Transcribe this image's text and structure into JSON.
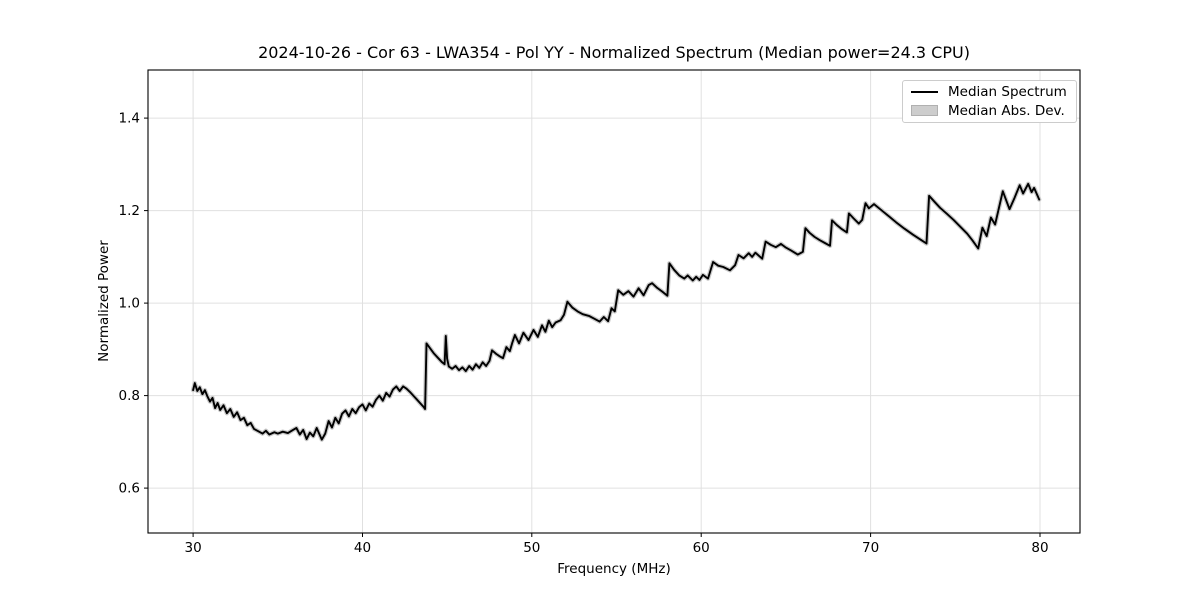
{
  "figure": {
    "title": "2024-10-26 - Cor 63 - LWA354 - Pol YY - Normalized Spectrum (Median power=24.3 CPU)",
    "xlabel": "Frequency (MHz)",
    "ylabel": "Normalized Power"
  },
  "legend": {
    "items": [
      {
        "label": "Median Spectrum",
        "swatch": "line",
        "color": "#000000"
      },
      {
        "label": "Median Abs. Dev.",
        "swatch": "patch",
        "color": "#cdcdcd",
        "edge_color": "#b0b0b0"
      }
    ]
  },
  "chart_data": {
    "type": "line",
    "title": "2024-10-26 - Cor 63 - LWA354 - Pol YY - Normalized Spectrum (Median power=24.3 CPU)",
    "xlabel": "Frequency (MHz)",
    "ylabel": "Normalized Power",
    "xlim": [
      27.34,
      82.36
    ],
    "ylim": [
      0.503,
      1.504
    ],
    "xticks": [
      30,
      40,
      50,
      60,
      70,
      80
    ],
    "yticks": [
      0.6,
      0.8,
      1.0,
      1.2,
      1.4
    ],
    "grid": true,
    "grid_color": "#e0e0e0",
    "legend_position": "upper right",
    "series": [
      {
        "name": "Median Spectrum",
        "type": "line",
        "color": "#000000",
        "line_width": 1.9,
        "points": [
          [
            30.0,
            0.812
          ],
          [
            30.1,
            0.827
          ],
          [
            30.25,
            0.81
          ],
          [
            30.4,
            0.818
          ],
          [
            30.55,
            0.803
          ],
          [
            30.7,
            0.812
          ],
          [
            30.85,
            0.798
          ],
          [
            31.0,
            0.787
          ],
          [
            31.15,
            0.795
          ],
          [
            31.3,
            0.773
          ],
          [
            31.45,
            0.784
          ],
          [
            31.6,
            0.769
          ],
          [
            31.8,
            0.779
          ],
          [
            32.0,
            0.762
          ],
          [
            32.2,
            0.771
          ],
          [
            32.4,
            0.754
          ],
          [
            32.6,
            0.764
          ],
          [
            32.8,
            0.747
          ],
          [
            33.0,
            0.752
          ],
          [
            33.2,
            0.736
          ],
          [
            33.4,
            0.741
          ],
          [
            33.6,
            0.728
          ],
          [
            33.9,
            0.722
          ],
          [
            34.1,
            0.718
          ],
          [
            34.3,
            0.724
          ],
          [
            34.5,
            0.716
          ],
          [
            34.8,
            0.721
          ],
          [
            35.0,
            0.718
          ],
          [
            35.3,
            0.722
          ],
          [
            35.6,
            0.719
          ],
          [
            35.9,
            0.726
          ],
          [
            36.1,
            0.73
          ],
          [
            36.3,
            0.716
          ],
          [
            36.5,
            0.726
          ],
          [
            36.7,
            0.706
          ],
          [
            36.9,
            0.72
          ],
          [
            37.1,
            0.712
          ],
          [
            37.3,
            0.73
          ],
          [
            37.6,
            0.705
          ],
          [
            37.8,
            0.718
          ],
          [
            38.0,
            0.745
          ],
          [
            38.2,
            0.731
          ],
          [
            38.4,
            0.752
          ],
          [
            38.6,
            0.74
          ],
          [
            38.8,
            0.761
          ],
          [
            39.0,
            0.768
          ],
          [
            39.2,
            0.755
          ],
          [
            39.4,
            0.771
          ],
          [
            39.6,
            0.762
          ],
          [
            39.8,
            0.775
          ],
          [
            40.0,
            0.781
          ],
          [
            40.2,
            0.768
          ],
          [
            40.4,
            0.783
          ],
          [
            40.6,
            0.776
          ],
          [
            40.8,
            0.791
          ],
          [
            41.0,
            0.8
          ],
          [
            41.2,
            0.789
          ],
          [
            41.4,
            0.806
          ],
          [
            41.6,
            0.798
          ],
          [
            41.8,
            0.813
          ],
          [
            42.0,
            0.82
          ],
          [
            42.2,
            0.81
          ],
          [
            42.4,
            0.82
          ],
          [
            42.6,
            0.815
          ],
          [
            42.8,
            0.808
          ],
          [
            43.0,
            0.8
          ],
          [
            43.2,
            0.792
          ],
          [
            43.4,
            0.784
          ],
          [
            43.6,
            0.776
          ],
          [
            43.7,
            0.771
          ],
          [
            43.78,
            0.913
          ],
          [
            44.0,
            0.902
          ],
          [
            44.2,
            0.892
          ],
          [
            44.45,
            0.882
          ],
          [
            44.7,
            0.872
          ],
          [
            44.85,
            0.868
          ],
          [
            44.92,
            0.929
          ],
          [
            45.0,
            0.88
          ],
          [
            45.1,
            0.863
          ],
          [
            45.3,
            0.858
          ],
          [
            45.5,
            0.864
          ],
          [
            45.7,
            0.855
          ],
          [
            45.9,
            0.861
          ],
          [
            46.1,
            0.853
          ],
          [
            46.3,
            0.864
          ],
          [
            46.5,
            0.856
          ],
          [
            46.7,
            0.868
          ],
          [
            46.9,
            0.86
          ],
          [
            47.1,
            0.872
          ],
          [
            47.3,
            0.864
          ],
          [
            47.5,
            0.875
          ],
          [
            47.65,
            0.898
          ],
          [
            47.9,
            0.89
          ],
          [
            48.1,
            0.885
          ],
          [
            48.3,
            0.881
          ],
          [
            48.5,
            0.905
          ],
          [
            48.7,
            0.896
          ],
          [
            48.85,
            0.915
          ],
          [
            49.0,
            0.931
          ],
          [
            49.25,
            0.913
          ],
          [
            49.5,
            0.936
          ],
          [
            49.8,
            0.92
          ],
          [
            50.1,
            0.942
          ],
          [
            50.35,
            0.927
          ],
          [
            50.6,
            0.952
          ],
          [
            50.8,
            0.938
          ],
          [
            51.0,
            0.962
          ],
          [
            51.2,
            0.948
          ],
          [
            51.4,
            0.958
          ],
          [
            51.7,
            0.963
          ],
          [
            51.9,
            0.975
          ],
          [
            52.1,
            1.003
          ],
          [
            52.4,
            0.99
          ],
          [
            52.7,
            0.982
          ],
          [
            53.0,
            0.976
          ],
          [
            53.4,
            0.972
          ],
          [
            53.7,
            0.966
          ],
          [
            54.0,
            0.96
          ],
          [
            54.25,
            0.97
          ],
          [
            54.5,
            0.961
          ],
          [
            54.7,
            0.989
          ],
          [
            54.9,
            0.982
          ],
          [
            55.1,
            1.028
          ],
          [
            55.4,
            1.018
          ],
          [
            55.7,
            1.026
          ],
          [
            56.0,
            1.014
          ],
          [
            56.3,
            1.032
          ],
          [
            56.6,
            1.017
          ],
          [
            56.9,
            1.039
          ],
          [
            57.1,
            1.043
          ],
          [
            57.4,
            1.033
          ],
          [
            57.7,
            1.025
          ],
          [
            58.0,
            1.016
          ],
          [
            58.12,
            1.086
          ],
          [
            58.4,
            1.072
          ],
          [
            58.7,
            1.06
          ],
          [
            59.0,
            1.053
          ],
          [
            59.2,
            1.06
          ],
          [
            59.5,
            1.049
          ],
          [
            59.7,
            1.057
          ],
          [
            59.9,
            1.05
          ],
          [
            60.1,
            1.061
          ],
          [
            60.4,
            1.053
          ],
          [
            60.7,
            1.089
          ],
          [
            61.0,
            1.081
          ],
          [
            61.3,
            1.078
          ],
          [
            61.7,
            1.071
          ],
          [
            62.0,
            1.082
          ],
          [
            62.2,
            1.104
          ],
          [
            62.5,
            1.097
          ],
          [
            62.8,
            1.108
          ],
          [
            63.0,
            1.1
          ],
          [
            63.2,
            1.109
          ],
          [
            63.6,
            1.096
          ],
          [
            63.8,
            1.133
          ],
          [
            64.1,
            1.126
          ],
          [
            64.4,
            1.121
          ],
          [
            64.7,
            1.128
          ],
          [
            65.0,
            1.12
          ],
          [
            65.3,
            1.114
          ],
          [
            65.7,
            1.105
          ],
          [
            66.0,
            1.111
          ],
          [
            66.15,
            1.162
          ],
          [
            66.4,
            1.152
          ],
          [
            66.7,
            1.143
          ],
          [
            67.0,
            1.136
          ],
          [
            67.3,
            1.13
          ],
          [
            67.6,
            1.124
          ],
          [
            67.72,
            1.179
          ],
          [
            68.0,
            1.169
          ],
          [
            68.3,
            1.16
          ],
          [
            68.6,
            1.153
          ],
          [
            68.72,
            1.194
          ],
          [
            69.0,
            1.183
          ],
          [
            69.3,
            1.172
          ],
          [
            69.5,
            1.18
          ],
          [
            69.7,
            1.216
          ],
          [
            69.9,
            1.205
          ],
          [
            70.2,
            1.214
          ],
          [
            70.6,
            1.202
          ],
          [
            71.0,
            1.19
          ],
          [
            71.5,
            1.175
          ],
          [
            72.0,
            1.161
          ],
          [
            72.5,
            1.148
          ],
          [
            73.0,
            1.136
          ],
          [
            73.3,
            1.129
          ],
          [
            73.45,
            1.232
          ],
          [
            73.8,
            1.218
          ],
          [
            74.1,
            1.206
          ],
          [
            74.5,
            1.193
          ],
          [
            74.9,
            1.18
          ],
          [
            75.3,
            1.165
          ],
          [
            75.7,
            1.15
          ],
          [
            76.0,
            1.136
          ],
          [
            76.35,
            1.118
          ],
          [
            76.6,
            1.163
          ],
          [
            76.85,
            1.145
          ],
          [
            77.1,
            1.185
          ],
          [
            77.35,
            1.17
          ],
          [
            77.8,
            1.242
          ],
          [
            78.2,
            1.203
          ],
          [
            78.5,
            1.228
          ],
          [
            78.8,
            1.255
          ],
          [
            79.0,
            1.237
          ],
          [
            79.3,
            1.258
          ],
          [
            79.5,
            1.24
          ],
          [
            79.65,
            1.249
          ],
          [
            79.95,
            1.224
          ]
        ]
      },
      {
        "name": "Median Abs. Dev.",
        "type": "band",
        "color": "#c9c9c9",
        "follows": "Median Spectrum",
        "band_stroke_px": 4.4
      }
    ]
  }
}
